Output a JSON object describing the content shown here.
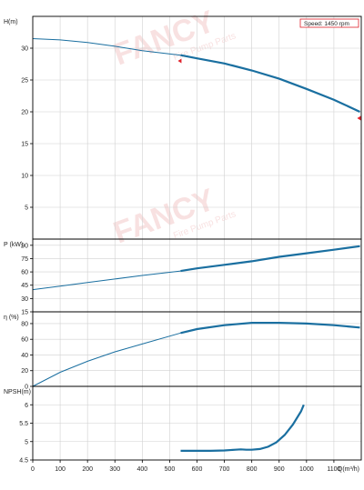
{
  "legend": {
    "text": "Speed: 1450 rpm"
  },
  "watermark": {
    "brand": "FANCY",
    "tagline": "Fire Pump Parts"
  },
  "colors": {
    "curve": "#1a6fa0",
    "axis": "#000000",
    "grid": "#d0d0d0",
    "marker": "#e0202a",
    "watermark": "#f3c9c9"
  },
  "x_axis": {
    "label": "Q(m³/h)",
    "ticks": [
      "0",
      "100",
      "200",
      "300",
      "400",
      "500",
      "600",
      "700",
      "800",
      "900",
      "1000",
      "1100"
    ]
  },
  "chart_data": [
    {
      "type": "line",
      "ylabel": "H(m)",
      "xlim": [
        0,
        1200
      ],
      "ylim": [
        0,
        35
      ],
      "yticks": [
        "5",
        "10",
        "15",
        "20",
        "25",
        "30"
      ],
      "grid": true,
      "x": [
        0,
        100,
        200,
        300,
        400,
        540,
        600,
        700,
        800,
        900,
        1000,
        1100,
        1195
      ],
      "values": [
        31.5,
        31.3,
        30.9,
        30.3,
        29.6,
        28.9,
        28.4,
        27.6,
        26.5,
        25.2,
        23.6,
        21.9,
        20.0
      ],
      "markers": [
        {
          "x": 540,
          "y": 28.0
        },
        {
          "x": 1195,
          "y": 19.0
        }
      ]
    },
    {
      "type": "line",
      "ylabel": "P (kW)",
      "xlim": [
        0,
        1200
      ],
      "ylim": [
        15,
        97
      ],
      "yticks": [
        "15",
        "30",
        "45",
        "60",
        "75",
        "90"
      ],
      "grid": true,
      "x": [
        0,
        100,
        200,
        300,
        400,
        540,
        600,
        700,
        800,
        900,
        1000,
        1100,
        1195
      ],
      "values": [
        40,
        44,
        48,
        52,
        56,
        61,
        64,
        68,
        72,
        77,
        81,
        85,
        89
      ]
    },
    {
      "type": "line",
      "ylabel": "η (%)",
      "xlim": [
        0,
        1200
      ],
      "ylim": [
        0,
        95
      ],
      "yticks": [
        "0",
        "20",
        "40",
        "60",
        "80"
      ],
      "grid": true,
      "x": [
        0,
        100,
        200,
        300,
        400,
        540,
        600,
        700,
        800,
        900,
        1000,
        1100,
        1195
      ],
      "values": [
        0,
        18,
        32,
        44,
        54,
        68,
        73,
        78,
        81,
        81,
        80,
        78,
        75
      ]
    },
    {
      "type": "line",
      "ylabel": "NPSH(m)",
      "xlim": [
        0,
        1200
      ],
      "ylim": [
        4.5,
        6.5
      ],
      "yticks": [
        "4.5",
        "5",
        "5.5",
        "6"
      ],
      "grid": true,
      "x": [
        540,
        600,
        650,
        700,
        740,
        760,
        780,
        800,
        830,
        860,
        890,
        920,
        950,
        980,
        990
      ],
      "values": [
        4.75,
        4.75,
        4.75,
        4.76,
        4.78,
        4.79,
        4.78,
        4.78,
        4.8,
        4.86,
        4.98,
        5.18,
        5.46,
        5.82,
        6.0
      ]
    }
  ]
}
